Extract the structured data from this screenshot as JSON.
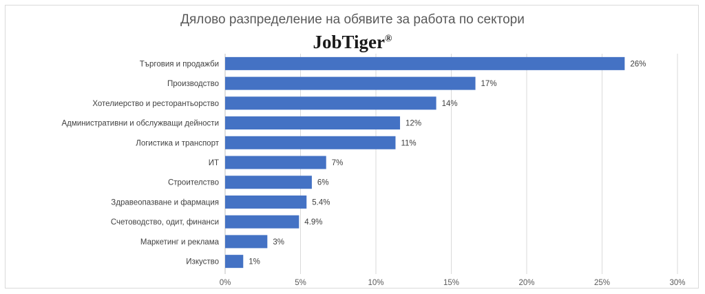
{
  "chart_data": {
    "type": "bar",
    "orientation": "horizontal",
    "title": "Дялово разпределение на обявите за работа по сектори",
    "logo_text": "JobTiger®",
    "categories": [
      "Търговия и продажби",
      "Производство",
      "Хотелиерство и ресторантьорство",
      "Административни и обслужващи дейности",
      "Логистика и транспорт",
      "ИТ",
      "Строителство",
      "Здравеопазване и фармация",
      "Счетоводство, одит, финанси",
      "Маркетинг и реклама",
      "Изкуство"
    ],
    "values": [
      26.5,
      16.6,
      14.0,
      11.6,
      11.3,
      6.7,
      5.75,
      5.4,
      4.9,
      2.8,
      1.2
    ],
    "data_labels": [
      "26%",
      "17%",
      "14%",
      "12%",
      "11%",
      "7%",
      "6%",
      "5.4%",
      "4.9%",
      "3%",
      "1%"
    ],
    "xlim": [
      0,
      30
    ],
    "x_ticks": [
      "0%",
      "5%",
      "10%",
      "15%",
      "20%",
      "25%",
      "30%"
    ],
    "xlabel": "",
    "ylabel": "",
    "grid": "vertical",
    "bar_color": "#4472c4"
  }
}
